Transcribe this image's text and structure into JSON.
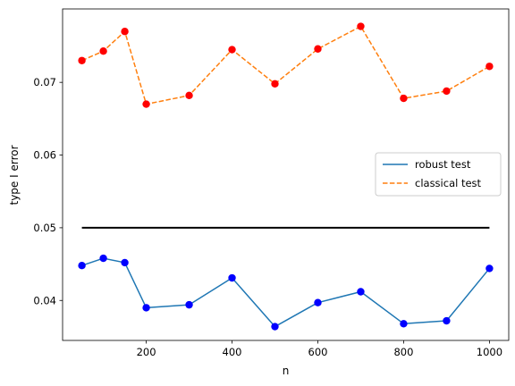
{
  "chart_data": {
    "type": "line",
    "title": "",
    "xlabel": "n",
    "ylabel": "type I error",
    "xlim": [
      5,
      1045
    ],
    "ylim": [
      0.0345,
      0.0801
    ],
    "xticks": [
      200,
      400,
      600,
      800,
      1000
    ],
    "xtick_labels": [
      "200",
      "400",
      "600",
      "800",
      "1000"
    ],
    "yticks": [
      0.04,
      0.05,
      0.06,
      0.07
    ],
    "ytick_labels": [
      "0.04",
      "0.05",
      "0.06",
      "0.07"
    ],
    "grid": false,
    "legend_position": "center-right",
    "x": [
      50,
      100,
      150,
      200,
      300,
      400,
      500,
      600,
      700,
      800,
      900,
      1000
    ],
    "series": [
      {
        "name": "robust test",
        "line_color": "#1f77b4",
        "marker_color": "#0000ff",
        "dashed": false,
        "values": [
          0.0448,
          0.0458,
          0.0452,
          0.039,
          0.0394,
          0.0431,
          0.0364,
          0.0397,
          0.0412,
          0.0368,
          0.0372,
          0.0444
        ]
      },
      {
        "name": "classical test",
        "line_color": "#ff7f0e",
        "marker_color": "#ff0000",
        "dashed": true,
        "values": [
          0.073,
          0.0743,
          0.077,
          0.067,
          0.0682,
          0.0745,
          0.0698,
          0.0746,
          0.0777,
          0.0678,
          0.0688,
          0.0722
        ]
      }
    ],
    "reference_line": {
      "y": 0.05,
      "x_from": 50,
      "x_to": 1000,
      "color": "#000000"
    }
  }
}
